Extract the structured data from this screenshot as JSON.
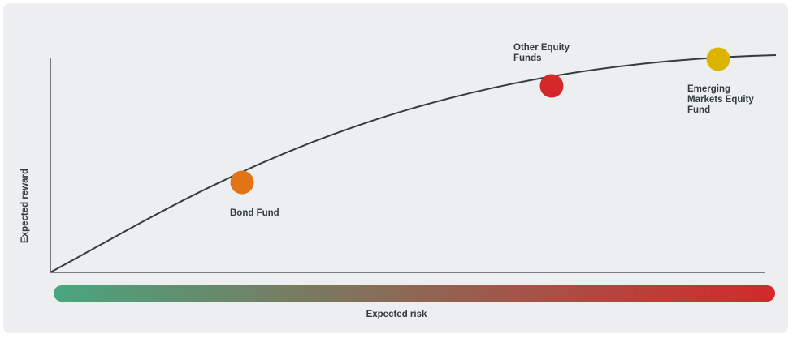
{
  "diagram": {
    "y_axis_label": "Expected reward",
    "x_axis_label": "Expected risk",
    "gradient": {
      "start_color": "#48a67e",
      "end_color": "#d4282a"
    },
    "funds": [
      {
        "name": "Bond Fund",
        "color": "#e07417"
      },
      {
        "name": "Other Equity\nFunds",
        "color": "#d4282a"
      },
      {
        "name": "Emerging\nMarkets Equity\nFund",
        "color": "#dcb400"
      }
    ]
  }
}
